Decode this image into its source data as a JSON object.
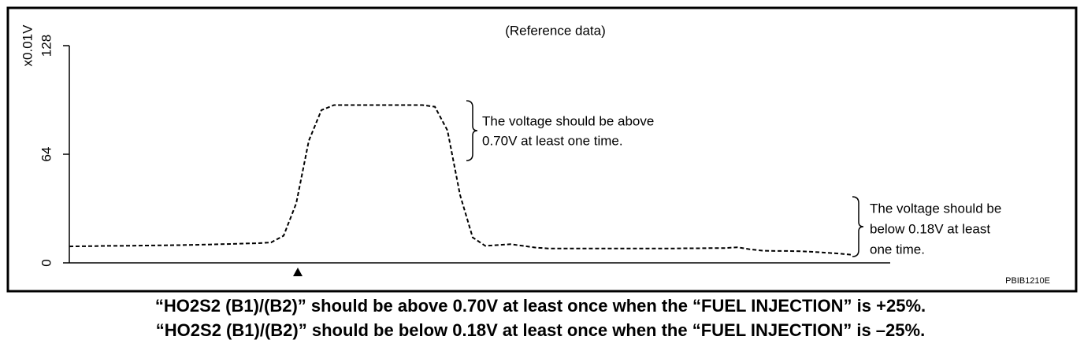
{
  "chart_data": {
    "type": "line",
    "title": "(Reference data)",
    "ylabel": "x0.01V",
    "ylim": [
      0,
      128
    ],
    "yticks": [
      0,
      64,
      128
    ],
    "values": [
      9.7,
      9.8,
      9.9,
      10.0,
      10.0,
      10.1,
      10.2,
      10.3,
      10.4,
      10.5,
      10.6,
      10.8,
      11.0,
      11.2,
      11.4,
      11.6,
      12,
      16,
      35,
      72,
      90,
      93,
      93,
      93,
      93,
      93,
      93,
      93,
      93,
      92,
      78,
      40,
      15,
      10,
      10.5,
      11,
      10,
      9,
      8.5,
      8.5,
      8.5,
      8.5,
      8.5,
      8.5,
      8.5,
      8.5,
      8.5,
      8.5,
      8.5,
      8.6,
      8.6,
      8.7,
      8.7,
      9.2,
      8,
      7.2,
      7,
      7,
      6.8,
      6.5,
      6,
      5.5,
      4.8
    ],
    "color": "#000000",
    "annotations": [
      {
        "lines": [
          "The voltage should be above",
          "0.70V at least one time."
        ]
      },
      {
        "lines": [
          "The voltage should be",
          "below 0.18V at least",
          "one time."
        ]
      }
    ],
    "code": "PBIB1210E",
    "captions": [
      "“HO2S2 (B1)/(B2)” should be above 0.70V at least once when the “FUEL INJECTION” is +25%.",
      "“HO2S2 (B1)/(B2)” should be below 0.18V at least once when the “FUEL INJECTION” is –25%."
    ]
  }
}
